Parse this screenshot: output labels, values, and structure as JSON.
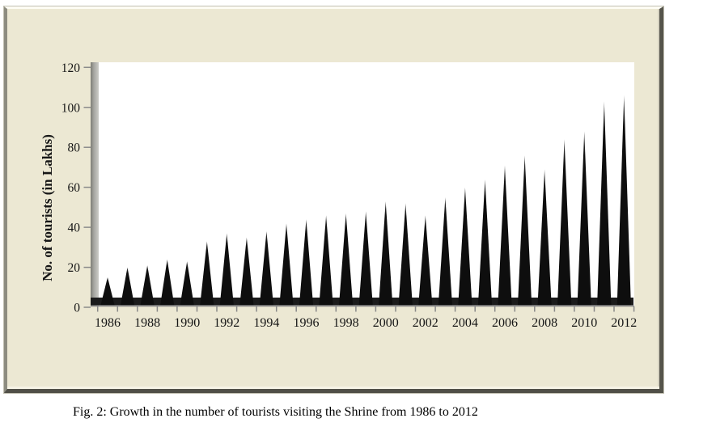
{
  "figure": {
    "caption": "Fig. 2: Growth in the number of tourists visiting the Shrine from 1986 to 2012"
  },
  "chart_data": {
    "type": "area",
    "style": "3d-pyramid-spike-series",
    "title": "",
    "xlabel": "",
    "ylabel": "No. of tourists (in Lakhs)",
    "categories": [
      1986,
      1987,
      1988,
      1989,
      1990,
      1991,
      1992,
      1993,
      1994,
      1995,
      1996,
      1997,
      1998,
      1999,
      2000,
      2001,
      2002,
      2003,
      2004,
      2005,
      2006,
      2007,
      2008,
      2009,
      2010,
      2011,
      2012
    ],
    "values": [
      15,
      20,
      21,
      24,
      23,
      33,
      37,
      35,
      38,
      42,
      44,
      46,
      47,
      48,
      53,
      52,
      46,
      55,
      60,
      64,
      71,
      76,
      69,
      84,
      88,
      103,
      106
    ],
    "ylim": [
      0,
      120
    ],
    "y_ticks": [
      0,
      20,
      40,
      60,
      80,
      100,
      120
    ],
    "x_tick_labels": [
      "1986",
      "1988",
      "1990",
      "1992",
      "1994",
      "1996",
      "1998",
      "2000",
      "2002",
      "2004",
      "2006",
      "2008",
      "2010",
      "2012"
    ],
    "x_label_every": 2,
    "grid": false,
    "legend": "none",
    "colors": {
      "spike": "#0e0e0e",
      "spike_tip": "#6f6f6f",
      "plot_bg": "#ffffff",
      "panel_bg": "#ece8d3",
      "wall_dark": "#7e7e76",
      "wall_mid": "#a9a9a4",
      "wall_light": "#cbcbc6",
      "floor": "#1b1b1b",
      "axis": "#8a8a8a",
      "text": "#161616"
    }
  }
}
